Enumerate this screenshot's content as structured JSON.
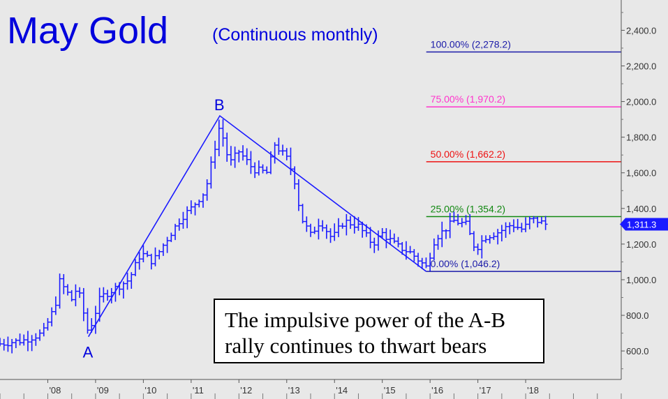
{
  "header": {
    "title": "May Gold",
    "subtitle": "(Continuous monthly)"
  },
  "annotation": {
    "line1": "The impulsive power of the A-B",
    "line2": "rally continues to thwart bears"
  },
  "chart_data": {
    "type": "bar",
    "title": "May Gold",
    "subtitle": "(Continuous monthly)",
    "x_tick_labels": [
      "'08",
      "'09",
      "'10",
      "'11",
      "'12",
      "'13",
      "'14",
      "'15",
      "'16",
      "'17",
      "'18"
    ],
    "x_ticks": [
      2008,
      2009,
      2010,
      2011,
      2012,
      2013,
      2014,
      2015,
      2016,
      2017,
      2018
    ],
    "xlim": [
      2007.0,
      2020.0
    ],
    "ylim": [
      440,
      2570
    ],
    "y_ticks": [
      600,
      800,
      1000,
      1200,
      1400,
      1600,
      1800,
      2000,
      2200,
      2400
    ],
    "y_tick_labels": [
      "600.0",
      "800.0",
      "1,000.0",
      "1,200.0",
      "1,400.0",
      "1,600.0",
      "1,800.0",
      "2,000.0",
      "2,200.0",
      "2,400.0"
    ],
    "last_price": 1311.3,
    "last_price_label": "1,311.3",
    "line_color": "#1a1aff",
    "fib_levels": [
      {
        "label": "100.00% (2,278.2)",
        "value": 2278.2,
        "color": "#1a1aa8"
      },
      {
        "label": "75.00% (1,970.2)",
        "value": 1970.2,
        "color": "#ff33cc"
      },
      {
        "label": "50.00% (1,662.2)",
        "value": 1662.2,
        "color": "#ee1111"
      },
      {
        "label": "25.00% (1,354.2)",
        "value": 1354.2,
        "color": "#118811"
      },
      {
        "label": "0.00% (1,046.2)",
        "value": 1046.2,
        "color": "#1a1aa8"
      }
    ],
    "fib_start_x": 2015.92,
    "wave_points": [
      {
        "label": "A",
        "x": 2008.85,
        "y": 680
      },
      {
        "label": "B",
        "x": 2011.6,
        "y": 1920
      },
      {
        "label": "",
        "x": 2015.92,
        "y": 1046.2
      }
    ],
    "pivots": [
      [
        2007.0,
        640
      ],
      [
        2007.5,
        660
      ],
      [
        2007.9,
        700
      ],
      [
        2008.15,
        850
      ],
      [
        2008.25,
        990
      ],
      [
        2008.5,
        890
      ],
      [
        2008.62,
        960
      ],
      [
        2008.85,
        700
      ],
      [
        2009.1,
        900
      ],
      [
        2009.4,
        950
      ],
      [
        2009.7,
        1000
      ],
      [
        2009.95,
        1150
      ],
      [
        2010.2,
        1100
      ],
      [
        2010.5,
        1230
      ],
      [
        2010.8,
        1350
      ],
      [
        2011.0,
        1400
      ],
      [
        2011.3,
        1500
      ],
      [
        2011.6,
        1870
      ],
      [
        2011.8,
        1650
      ],
      [
        2012.0,
        1720
      ],
      [
        2012.3,
        1620
      ],
      [
        2012.6,
        1600
      ],
      [
        2012.75,
        1760
      ],
      [
        2013.0,
        1680
      ],
      [
        2013.15,
        1580
      ],
      [
        2013.3,
        1350
      ],
      [
        2013.5,
        1250
      ],
      [
        2013.7,
        1330
      ],
      [
        2013.95,
        1230
      ],
      [
        2014.2,
        1330
      ],
      [
        2014.5,
        1300
      ],
      [
        2014.8,
        1200
      ],
      [
        2015.0,
        1260
      ],
      [
        2015.3,
        1190
      ],
      [
        2015.6,
        1150
      ],
      [
        2015.92,
        1070
      ],
      [
        2016.1,
        1230
      ],
      [
        2016.5,
        1330
      ],
      [
        2016.75,
        1310
      ],
      [
        2016.95,
        1170
      ],
      [
        2017.15,
        1240
      ],
      [
        2017.45,
        1270
      ],
      [
        2017.7,
        1310
      ],
      [
        2017.95,
        1280
      ],
      [
        2018.1,
        1340
      ],
      [
        2018.25,
        1330
      ],
      [
        2018.42,
        1311.3
      ]
    ]
  }
}
